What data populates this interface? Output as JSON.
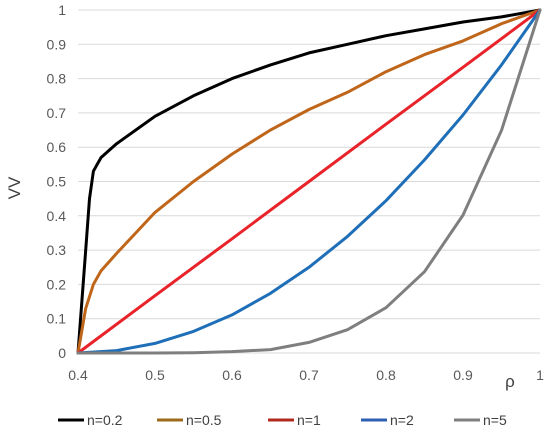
{
  "chart_data": {
    "type": "line",
    "xlabel": "ρ",
    "ylabel": "VV",
    "xlim": [
      0.4,
      1.0
    ],
    "ylim": [
      0,
      1
    ],
    "x_ticks": [
      "0.4",
      "0.5",
      "0.6",
      "0.7",
      "0.8",
      "0.9",
      "1"
    ],
    "y_ticks": [
      "0",
      "0.1",
      "0.2",
      "0.3",
      "0.4",
      "0.5",
      "0.6",
      "0.7",
      "0.8",
      "0.9",
      "1"
    ],
    "grid": "horizontal",
    "legend_position": "bottom",
    "series": [
      {
        "name": "n=0.2",
        "color": "#000000",
        "x": [
          0.4,
          0.41,
          0.415,
          0.42,
          0.425,
          0.43,
          0.45,
          0.5,
          0.55,
          0.6,
          0.65,
          0.7,
          0.75,
          0.8,
          0.85,
          0.9,
          0.95,
          1.0
        ],
        "y": [
          0,
          0.3,
          0.45,
          0.53,
          0.55,
          0.57,
          0.61,
          0.69,
          0.75,
          0.8,
          0.84,
          0.875,
          0.9,
          0.925,
          0.945,
          0.965,
          0.98,
          1.0
        ]
      },
      {
        "name": "n=0.5",
        "color": "#c0661a",
        "x": [
          0.4,
          0.41,
          0.42,
          0.43,
          0.45,
          0.5,
          0.55,
          0.6,
          0.65,
          0.7,
          0.75,
          0.8,
          0.85,
          0.9,
          0.95,
          1.0
        ],
        "y": [
          0,
          0.13,
          0.2,
          0.24,
          0.29,
          0.41,
          0.5,
          0.58,
          0.65,
          0.71,
          0.76,
          0.82,
          0.87,
          0.91,
          0.96,
          1.0
        ]
      },
      {
        "name": "n=1",
        "color": "#e8232a",
        "x": [
          0.4,
          0.5,
          0.6,
          0.7,
          0.8,
          0.9,
          1.0
        ],
        "y": [
          0,
          0.167,
          0.333,
          0.5,
          0.667,
          0.833,
          1.0
        ]
      },
      {
        "name": "n=2",
        "color": "#1f6fb8",
        "x": [
          0.4,
          0.45,
          0.5,
          0.55,
          0.6,
          0.65,
          0.7,
          0.75,
          0.8,
          0.85,
          0.9,
          0.95,
          1.0
        ],
        "y": [
          0,
          0.007,
          0.028,
          0.063,
          0.111,
          0.174,
          0.25,
          0.34,
          0.444,
          0.563,
          0.694,
          0.84,
          1.0
        ]
      },
      {
        "name": "n=5",
        "color": "#7f7f7f",
        "x": [
          0.4,
          0.5,
          0.55,
          0.6,
          0.65,
          0.7,
          0.75,
          0.8,
          0.85,
          0.9,
          0.95,
          1.0
        ],
        "y": [
          0,
          0.0001,
          0.001,
          0.004,
          0.01,
          0.031,
          0.068,
          0.132,
          0.237,
          0.402,
          0.649,
          1.0
        ]
      }
    ],
    "legend_line_colors": {
      "n=0.2": "#000000",
      "n=0.5": "#9c6b1c",
      "n=1": "#b22a1e",
      "n=2": "#2e5fb0",
      "n=5": "#7f7f7f"
    }
  }
}
